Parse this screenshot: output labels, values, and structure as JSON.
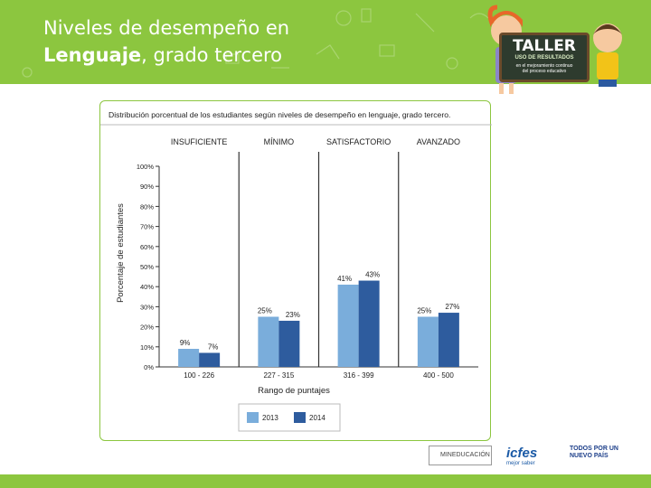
{
  "slide": {
    "title_line1": "Niveles de desempeño en",
    "title_bold": "Lenguaje",
    "title_rest": ", grado tercero"
  },
  "badge": {
    "word": "TALLER",
    "sub": "USO DE RESULTADOS",
    "sub2_line1": "en el mejoramiento continuo",
    "sub2_line2": "del proceso educativo"
  },
  "logos": {
    "ministry": "MINEDUCACIÓN",
    "icfes": "icfes",
    "icfes_tag": "mejor saber",
    "todos_line1": "TODOS POR UN",
    "todos_line2": "NUEVO PAÍS"
  },
  "colors": {
    "header_green": "#8cc63f",
    "series_2013": "#7aaddb",
    "series_2014": "#2e5c9e"
  },
  "chart_data": {
    "type": "bar",
    "title": "Distribución porcentual de los estudiantes según niveles de desempeño en lenguaje, grado tercero.",
    "levels": [
      "INSUFICIENTE",
      "MÍNIMO",
      "SATISFACTORIO",
      "AVANZADO"
    ],
    "categories": [
      "100 - 226",
      "227 - 315",
      "316 - 399",
      "400 - 500"
    ],
    "series": [
      {
        "name": "2013",
        "values": [
          9,
          25,
          41,
          25
        ],
        "labels": [
          "9%",
          "25%",
          "41%",
          "25%"
        ]
      },
      {
        "name": "2014",
        "values": [
          7,
          23,
          43,
          27
        ],
        "labels": [
          "7%",
          "23%",
          "43%",
          "27%"
        ]
      }
    ],
    "xlabel": "Rango de puntajes",
    "ylabel": "Porcentaje de estudiantes",
    "ylim": [
      0,
      100
    ],
    "yticks": [
      "0%",
      "10%",
      "20%",
      "30%",
      "40%",
      "50%",
      "60%",
      "70%",
      "80%",
      "90%",
      "100%"
    ],
    "legend_position": "bottom"
  }
}
